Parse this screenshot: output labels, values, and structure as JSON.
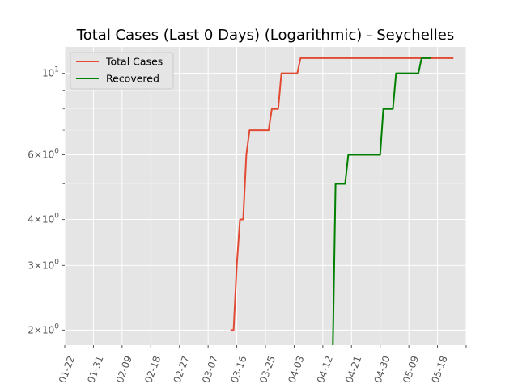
{
  "chart_data": {
    "type": "line",
    "title": "Total Cases (Last 0 Days) (Logarithmic) - Seychelles",
    "xlabel": "",
    "ylabel": "",
    "y_scale": "log",
    "grid": true,
    "legend_position": "top-left",
    "x_tick_labels": [
      "01-22",
      "01-31",
      "02-09",
      "02-18",
      "02-27",
      "03-07",
      "03-16",
      "03-25",
      "04-03",
      "04-12",
      "04-21",
      "04-30",
      "05-09",
      "05-18"
    ],
    "y_tick_labels": [
      {
        "value": 2,
        "mantissa": "2",
        "base": "10",
        "exp": "0"
      },
      {
        "value": 3,
        "mantissa": "3",
        "base": "10",
        "exp": "0"
      },
      {
        "value": 4,
        "mantissa": "4",
        "base": "10",
        "exp": "0"
      },
      {
        "value": 6,
        "mantissa": "6",
        "base": "10",
        "exp": "0"
      },
      {
        "value": 10,
        "mantissa": "",
        "base": "10",
        "exp": "1"
      }
    ],
    "x_range": [
      "2020-01-22",
      "2020-05-27"
    ],
    "y_range": [
      1.82,
      11.8
    ],
    "series": [
      {
        "name": "Total Cases",
        "color": "#E24A33",
        "points": [
          {
            "x": "2020-03-14",
            "y": 2
          },
          {
            "x": "2020-03-15",
            "y": 2
          },
          {
            "x": "2020-03-16",
            "y": 3
          },
          {
            "x": "2020-03-17",
            "y": 4
          },
          {
            "x": "2020-03-18",
            "y": 4
          },
          {
            "x": "2020-03-19",
            "y": 6
          },
          {
            "x": "2020-03-20",
            "y": 7
          },
          {
            "x": "2020-03-21",
            "y": 7
          },
          {
            "x": "2020-03-26",
            "y": 7
          },
          {
            "x": "2020-03-27",
            "y": 8
          },
          {
            "x": "2020-03-29",
            "y": 8
          },
          {
            "x": "2020-03-30",
            "y": 10
          },
          {
            "x": "2020-04-04",
            "y": 10
          },
          {
            "x": "2020-04-05",
            "y": 11
          },
          {
            "x": "2020-05-23",
            "y": 11
          }
        ]
      },
      {
        "name": "Recovered",
        "color": "#008000",
        "points": [
          {
            "x": "2020-04-15",
            "y": 1.5
          },
          {
            "x": "2020-04-16",
            "y": 5
          },
          {
            "x": "2020-04-19",
            "y": 5
          },
          {
            "x": "2020-04-20",
            "y": 6
          },
          {
            "x": "2020-04-30",
            "y": 6
          },
          {
            "x": "2020-05-01",
            "y": 8
          },
          {
            "x": "2020-05-04",
            "y": 8
          },
          {
            "x": "2020-05-05",
            "y": 10
          },
          {
            "x": "2020-05-12",
            "y": 10
          },
          {
            "x": "2020-05-13",
            "y": 11
          },
          {
            "x": "2020-05-16",
            "y": 11
          }
        ]
      }
    ]
  }
}
